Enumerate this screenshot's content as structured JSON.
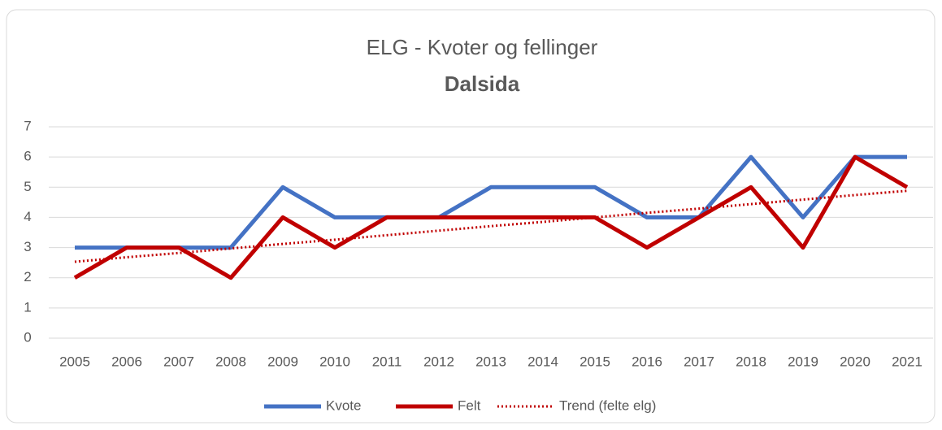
{
  "chart_data": {
    "type": "line",
    "title": "ELG - Kvoter og fellinger",
    "subtitle": "Dalsida",
    "categories": [
      "2005",
      "2006",
      "2007",
      "2008",
      "2009",
      "2010",
      "2011",
      "2012",
      "2013",
      "2014",
      "2015",
      "2016",
      "2017",
      "2018",
      "2019",
      "2020",
      "2021"
    ],
    "series": [
      {
        "name": "Kvote",
        "color": "#4472c4",
        "values": [
          3,
          3,
          3,
          3,
          5,
          4,
          4,
          4,
          5,
          5,
          5,
          4,
          4,
          6,
          4,
          6,
          6
        ]
      },
      {
        "name": "Felt",
        "color": "#c00000",
        "values": [
          2,
          3,
          3,
          2,
          4,
          3,
          4,
          4,
          4,
          4,
          4,
          3,
          4,
          5,
          3,
          6,
          5
        ]
      },
      {
        "name": "Trend (felte elg)",
        "color": "#c00000",
        "dashed": true,
        "values": [
          2.53,
          2.68,
          2.82,
          2.97,
          3.12,
          3.26,
          3.41,
          3.56,
          3.71,
          3.85,
          4.0,
          4.15,
          4.29,
          4.44,
          4.59,
          4.74,
          4.88
        ]
      }
    ],
    "ylim": [
      0,
      7
    ],
    "yticks": [
      0,
      1,
      2,
      3,
      4,
      5,
      6,
      7
    ],
    "grid": true,
    "legend": "bottom"
  }
}
